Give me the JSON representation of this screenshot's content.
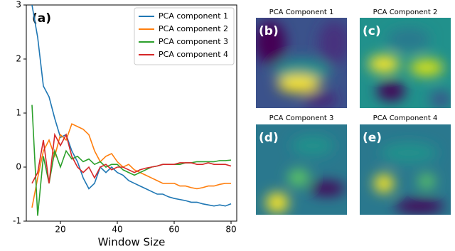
{
  "chart_data": {
    "type": "line",
    "panel_label": "(a)",
    "xlabel": "Window Size",
    "x": [
      10,
      12,
      14,
      16,
      18,
      20,
      22,
      24,
      26,
      28,
      30,
      32,
      34,
      36,
      38,
      40,
      42,
      44,
      46,
      48,
      50,
      52,
      54,
      56,
      58,
      60,
      62,
      64,
      66,
      68,
      70,
      72,
      74,
      76,
      78,
      80
    ],
    "xlim": [
      8,
      82
    ],
    "xticks": [
      20,
      40,
      60,
      80
    ],
    "ylim": [
      -1,
      3
    ],
    "yticks": [
      -1,
      0,
      1,
      2,
      3
    ],
    "legend": "upper right",
    "series": [
      {
        "name": "PCA component 1",
        "color": "#1f77b4",
        "values": [
          3.0,
          2.4,
          1.5,
          1.3,
          0.9,
          0.55,
          0.6,
          0.3,
          0.1,
          -0.2,
          -0.4,
          -0.3,
          0.0,
          -0.1,
          0.0,
          -0.1,
          -0.15,
          -0.25,
          -0.3,
          -0.35,
          -0.4,
          -0.45,
          -0.5,
          -0.5,
          -0.55,
          -0.58,
          -0.6,
          -0.62,
          -0.65,
          -0.65,
          -0.68,
          -0.7,
          -0.72,
          -0.7,
          -0.72,
          -0.68
        ]
      },
      {
        "name": "PCA component 2",
        "color": "#ff7f0e",
        "values": [
          -0.75,
          -0.2,
          0.3,
          0.5,
          0.2,
          0.6,
          0.5,
          0.8,
          0.75,
          0.7,
          0.6,
          0.3,
          0.1,
          0.2,
          0.25,
          0.1,
          0.0,
          0.05,
          -0.05,
          -0.1,
          -0.15,
          -0.2,
          -0.25,
          -0.3,
          -0.3,
          -0.3,
          -0.35,
          -0.35,
          -0.38,
          -0.4,
          -0.38,
          -0.35,
          -0.35,
          -0.32,
          -0.3,
          -0.3
        ]
      },
      {
        "name": "PCA component 3",
        "color": "#2ca02c",
        "values": [
          1.15,
          -0.9,
          0.2,
          -0.3,
          0.3,
          0.0,
          0.3,
          0.15,
          0.2,
          0.1,
          0.15,
          0.05,
          0.1,
          0.0,
          0.05,
          0.05,
          -0.05,
          -0.1,
          -0.15,
          -0.1,
          -0.05,
          0.0,
          0.02,
          0.05,
          0.05,
          0.05,
          0.05,
          0.08,
          0.08,
          0.1,
          0.1,
          0.1,
          0.1,
          0.12,
          0.12,
          0.13
        ]
      },
      {
        "name": "PCA component 4",
        "color": "#d62728",
        "values": [
          -0.3,
          -0.1,
          0.5,
          -0.3,
          0.6,
          0.4,
          0.6,
          0.2,
          0.0,
          -0.1,
          0.0,
          -0.2,
          0.0,
          0.05,
          -0.05,
          0.0,
          0.0,
          -0.05,
          -0.1,
          -0.05,
          -0.02,
          0.0,
          0.02,
          0.05,
          0.05,
          0.05,
          0.08,
          0.08,
          0.08,
          0.05,
          0.05,
          0.08,
          0.05,
          0.05,
          0.05,
          0.02
        ]
      }
    ]
  },
  "panels": [
    {
      "label": "(b)",
      "title": "PCA Component 1"
    },
    {
      "label": "(c)",
      "title": "PCA Component 2"
    },
    {
      "label": "(d)",
      "title": "PCA Component 3"
    },
    {
      "label": "(e)",
      "title": "PCA Component 4"
    }
  ]
}
